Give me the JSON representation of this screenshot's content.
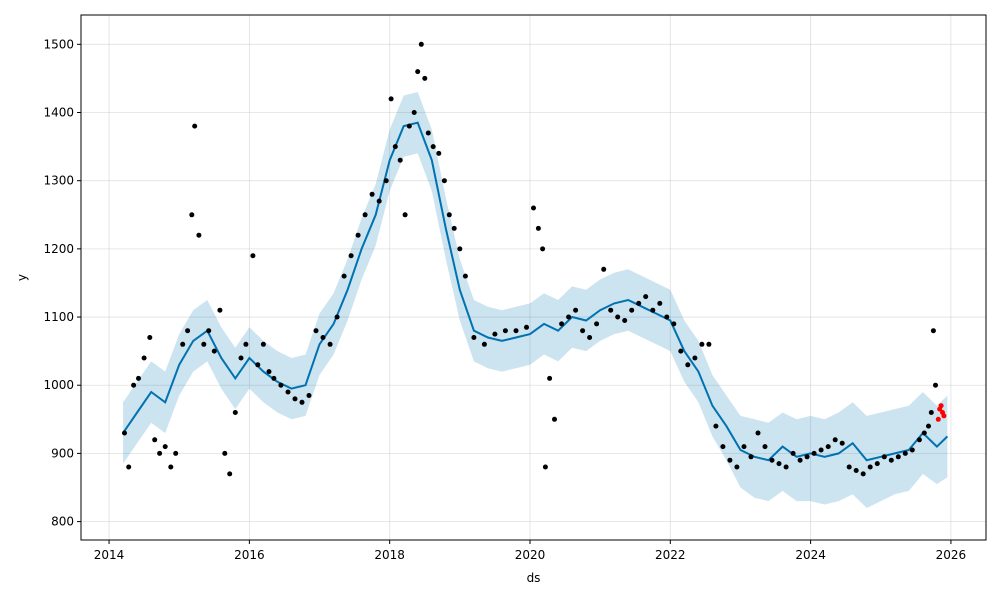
{
  "chart_data": {
    "type": "scatter",
    "title": "",
    "xlabel": "ds",
    "ylabel": "y",
    "xlim": [
      2013.6,
      2026.5
    ],
    "ylim": [
      773,
      1543
    ],
    "x_ticks": [
      2014,
      2016,
      2018,
      2020,
      2022,
      2024,
      2026
    ],
    "x_tick_labels": [
      "2014",
      "2016",
      "2018",
      "2020",
      "2022",
      "2024",
      "2026"
    ],
    "y_ticks": [
      800,
      900,
      1000,
      1100,
      1200,
      1300,
      1400,
      1500
    ],
    "y_tick_labels": [
      "800",
      "900",
      "1000",
      "1100",
      "1200",
      "1300",
      "1400",
      "1500"
    ],
    "grid": true,
    "colors": {
      "observed": "#000000",
      "recent_observed": "#ff0000",
      "forecast_line": "#0072B2",
      "uncertainty_band": "#0072B2"
    },
    "series": [
      {
        "kind": "forecast",
        "x": [
          2014.2,
          2014.4,
          2014.6,
          2014.8,
          2015.0,
          2015.2,
          2015.4,
          2015.6,
          2015.8,
          2016.0,
          2016.2,
          2016.4,
          2016.6,
          2016.8,
          2017.0,
          2017.2,
          2017.4,
          2017.6,
          2017.8,
          2018.0,
          2018.2,
          2018.4,
          2018.6,
          2018.8,
          2019.0,
          2019.2,
          2019.4,
          2019.6,
          2019.8,
          2020.0,
          2020.2,
          2020.4,
          2020.6,
          2020.8,
          2021.0,
          2021.2,
          2021.4,
          2021.6,
          2021.8,
          2022.0,
          2022.2,
          2022.4,
          2022.6,
          2022.8,
          2023.0,
          2023.2,
          2023.4,
          2023.6,
          2023.8,
          2024.0,
          2024.2,
          2024.4,
          2024.6,
          2024.8,
          2025.0,
          2025.2,
          2025.4,
          2025.6,
          2025.8,
          2025.95
        ],
        "y": [
          930,
          960,
          990,
          975,
          1030,
          1065,
          1080,
          1040,
          1010,
          1040,
          1020,
          1005,
          995,
          1000,
          1060,
          1090,
          1140,
          1200,
          1250,
          1330,
          1380,
          1385,
          1330,
          1230,
          1140,
          1080,
          1070,
          1065,
          1070,
          1075,
          1090,
          1080,
          1100,
          1095,
          1110,
          1120,
          1125,
          1115,
          1105,
          1095,
          1050,
          1020,
          970,
          940,
          905,
          895,
          890,
          910,
          895,
          900,
          895,
          900,
          915,
          890,
          895,
          900,
          905,
          930,
          910,
          925
        ],
        "y_lower": [
          885,
          915,
          945,
          930,
          985,
          1020,
          1035,
          995,
          965,
          995,
          975,
          960,
          950,
          955,
          1015,
          1045,
          1095,
          1155,
          1205,
          1285,
          1335,
          1340,
          1285,
          1185,
          1095,
          1035,
          1025,
          1020,
          1025,
          1030,
          1045,
          1035,
          1055,
          1050,
          1065,
          1075,
          1080,
          1070,
          1060,
          1050,
          1005,
          975,
          925,
          890,
          850,
          835,
          830,
          845,
          830,
          830,
          825,
          830,
          840,
          820,
          830,
          840,
          845,
          870,
          855,
          865
        ],
        "y_upper": [
          975,
          1005,
          1035,
          1020,
          1075,
          1110,
          1125,
          1085,
          1055,
          1085,
          1065,
          1050,
          1040,
          1045,
          1105,
          1135,
          1185,
          1245,
          1295,
          1375,
          1425,
          1430,
          1375,
          1275,
          1185,
          1125,
          1115,
          1110,
          1115,
          1120,
          1135,
          1125,
          1145,
          1140,
          1155,
          1165,
          1170,
          1160,
          1150,
          1140,
          1095,
          1065,
          1015,
          985,
          955,
          950,
          945,
          960,
          950,
          955,
          950,
          960,
          975,
          955,
          960,
          965,
          970,
          990,
          970,
          985
        ]
      },
      {
        "kind": "observed",
        "x": [
          2014.22,
          2014.28,
          2014.35,
          2014.42,
          2014.5,
          2014.58,
          2014.65,
          2014.72,
          2014.8,
          2014.88,
          2014.95,
          2015.05,
          2015.12,
          2015.18,
          2015.22,
          2015.28,
          2015.35,
          2015.42,
          2015.5,
          2015.58,
          2015.65,
          2015.72,
          2015.8,
          2015.88,
          2015.95,
          2016.05,
          2016.12,
          2016.2,
          2016.28,
          2016.35,
          2016.45,
          2016.55,
          2016.65,
          2016.75,
          2016.85,
          2016.95,
          2017.05,
          2017.15,
          2017.25,
          2017.35,
          2017.45,
          2017.55,
          2017.65,
          2017.75,
          2017.85,
          2017.95,
          2018.02,
          2018.08,
          2018.15,
          2018.22,
          2018.28,
          2018.35,
          2018.4,
          2018.45,
          2018.5,
          2018.55,
          2018.62,
          2018.7,
          2018.78,
          2018.85,
          2018.92,
          2019.0,
          2019.08,
          2019.2,
          2019.35,
          2019.5,
          2019.65,
          2019.8,
          2019.95,
          2020.05,
          2020.12,
          2020.18,
          2020.22,
          2020.28,
          2020.35,
          2020.45,
          2020.55,
          2020.65,
          2020.75,
          2020.85,
          2020.95,
          2021.05,
          2021.15,
          2021.25,
          2021.35,
          2021.45,
          2021.55,
          2021.65,
          2021.75,
          2021.85,
          2021.95,
          2022.05,
          2022.15,
          2022.25,
          2022.35,
          2022.45,
          2022.55,
          2022.65,
          2022.75,
          2022.85,
          2022.95,
          2023.05,
          2023.15,
          2023.25,
          2023.35,
          2023.45,
          2023.55,
          2023.65,
          2023.75,
          2023.85,
          2023.95,
          2024.05,
          2024.15,
          2024.25,
          2024.35,
          2024.45,
          2024.55,
          2024.65,
          2024.75,
          2024.85,
          2024.95,
          2025.05,
          2025.15,
          2025.25,
          2025.35,
          2025.45,
          2025.55,
          2025.62,
          2025.68,
          2025.72,
          2025.75,
          2025.78
        ],
        "y": [
          930,
          880,
          1000,
          1010,
          1040,
          1070,
          920,
          900,
          910,
          880,
          900,
          1060,
          1080,
          1250,
          1380,
          1220,
          1060,
          1080,
          1050,
          1110,
          900,
          870,
          960,
          1040,
          1060,
          1190,
          1030,
          1060,
          1020,
          1010,
          1000,
          990,
          980,
          975,
          985,
          1080,
          1070,
          1060,
          1100,
          1160,
          1190,
          1220,
          1250,
          1280,
          1270,
          1300,
          1420,
          1350,
          1330,
          1250,
          1380,
          1400,
          1460,
          1500,
          1450,
          1370,
          1350,
          1340,
          1300,
          1250,
          1230,
          1200,
          1160,
          1070,
          1060,
          1075,
          1080,
          1080,
          1085,
          1260,
          1230,
          1200,
          880,
          1010,
          950,
          1090,
          1100,
          1110,
          1080,
          1070,
          1090,
          1170,
          1110,
          1100,
          1095,
          1110,
          1120,
          1130,
          1110,
          1120,
          1100,
          1090,
          1050,
          1030,
          1040,
          1060,
          1060,
          940,
          910,
          890,
          880,
          910,
          895,
          930,
          910,
          890,
          885,
          880,
          900,
          890,
          895,
          900,
          905,
          910,
          920,
          915,
          880,
          875,
          870,
          880,
          885,
          895,
          890,
          895,
          900,
          905,
          920,
          930,
          940,
          960,
          1080,
          1000
        ],
        "color": "#000000"
      },
      {
        "kind": "recent_observed",
        "x": [
          2025.82,
          2025.84,
          2025.86,
          2025.88,
          2025.9
        ],
        "y": [
          950,
          965,
          970,
          960,
          955
        ],
        "color": "#ff0000"
      }
    ]
  }
}
